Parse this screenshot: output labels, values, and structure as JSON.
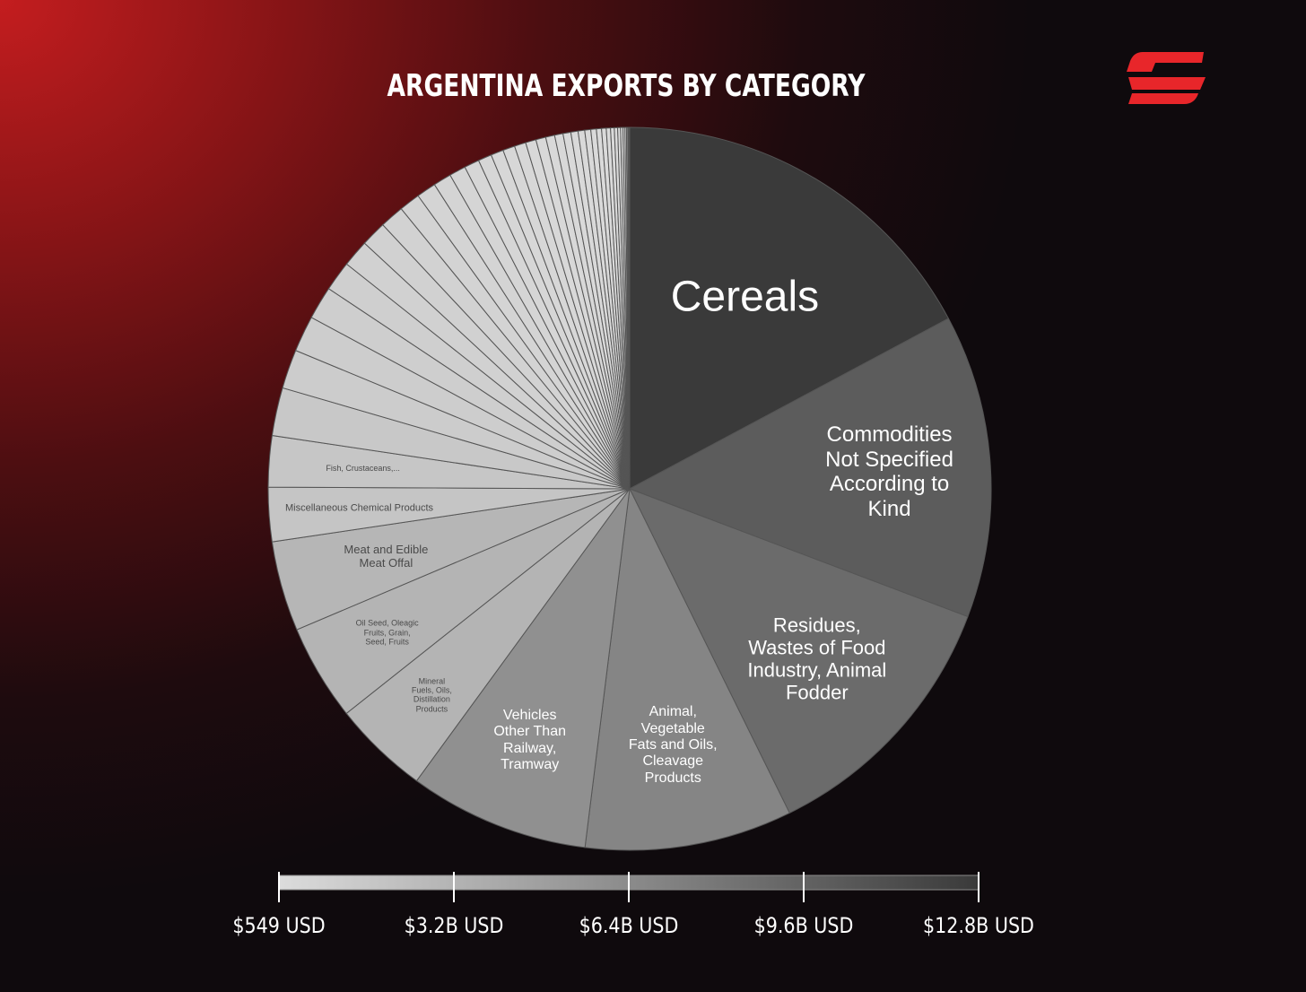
{
  "chart_data": {
    "type": "pie",
    "title": "ARGENTINA EXPORTS BY CATEGORY",
    "unit": "USD",
    "slices": [
      {
        "label": "Cereals",
        "value": 12800000000
      },
      {
        "label": "Commodities Not Specified According to Kind",
        "value": 10100000000
      },
      {
        "label": "Residues, Wastes of Food Industry, Animal Fodder",
        "value": 8900000000
      },
      {
        "label": "Animal, Vegetable Fats and Oils, Cleavage Products",
        "value": 6900000000
      },
      {
        "label": "Vehicles Other Than Railway, Tramway",
        "value": 6000000000
      },
      {
        "label": "Mineral Fuels, Oils, Distillation Products",
        "value": 3200000000
      },
      {
        "label": "Oil Seed, Oleagic Fruits, Grain, Seed, Fruits",
        "value": 3200000000
      },
      {
        "label": "Meat and Edible Meat Offal",
        "value": 3000000000
      },
      {
        "label": "Miscellaneous Chemical Products",
        "value": 1800000000
      },
      {
        "label": "Fish, Crustaceans,...",
        "value": 1700000000
      },
      {
        "label": "",
        "value": 1600000000
      },
      {
        "label": "",
        "value": 1300000000
      },
      {
        "label": "",
        "value": 1200000000
      },
      {
        "label": "",
        "value": 1100000000
      },
      {
        "label": "",
        "value": 1000000000
      },
      {
        "label": "",
        "value": 900000000
      },
      {
        "label": "",
        "value": 850000000
      },
      {
        "label": "",
        "value": 800000000
      },
      {
        "label": "",
        "value": 700000000
      },
      {
        "label": "",
        "value": 650000000
      },
      {
        "label": "",
        "value": 600000000
      },
      {
        "label": "",
        "value": 550000000
      },
      {
        "label": "",
        "value": 500000000
      },
      {
        "label": "",
        "value": 450000000
      },
      {
        "label": "",
        "value": 420000000
      },
      {
        "label": "",
        "value": 400000000
      },
      {
        "label": "",
        "value": 380000000
      },
      {
        "label": "",
        "value": 350000000
      },
      {
        "label": "",
        "value": 330000000
      },
      {
        "label": "",
        "value": 300000000
      },
      {
        "label": "",
        "value": 280000000
      },
      {
        "label": "",
        "value": 260000000
      },
      {
        "label": "",
        "value": 240000000
      },
      {
        "label": "",
        "value": 220000000
      },
      {
        "label": "",
        "value": 200000000
      },
      {
        "label": "",
        "value": 185000000
      },
      {
        "label": "",
        "value": 170000000
      },
      {
        "label": "",
        "value": 155000000
      },
      {
        "label": "",
        "value": 140000000
      },
      {
        "label": "",
        "value": 125000000
      },
      {
        "label": "",
        "value": 110000000
      },
      {
        "label": "",
        "value": 95000000
      },
      {
        "label": "",
        "value": 80000000
      },
      {
        "label": "",
        "value": 65000000
      },
      {
        "label": "",
        "value": 50000000
      },
      {
        "label": "",
        "value": 40000000
      },
      {
        "label": "",
        "value": 30000000
      },
      {
        "label": "",
        "value": 20000000
      },
      {
        "label": "",
        "value": 10000000
      },
      {
        "label": "",
        "value": 5000000
      }
    ],
    "color_scale": {
      "min_color": "#dcdcdc",
      "max_color": "#3a3a3a",
      "min_value": 549,
      "max_value": 12800000000,
      "ticks": [
        "$549 USD",
        "$3.2B USD",
        "$6.4B USD",
        "$9.6B USD",
        "$12.8B USD"
      ]
    },
    "legend": "bottom"
  },
  "colors": {
    "brand_red": "#e8262a",
    "title": "#ffffff",
    "slice_stroke": "#555555"
  },
  "icons": {
    "logo": "brand-logo-icon"
  }
}
